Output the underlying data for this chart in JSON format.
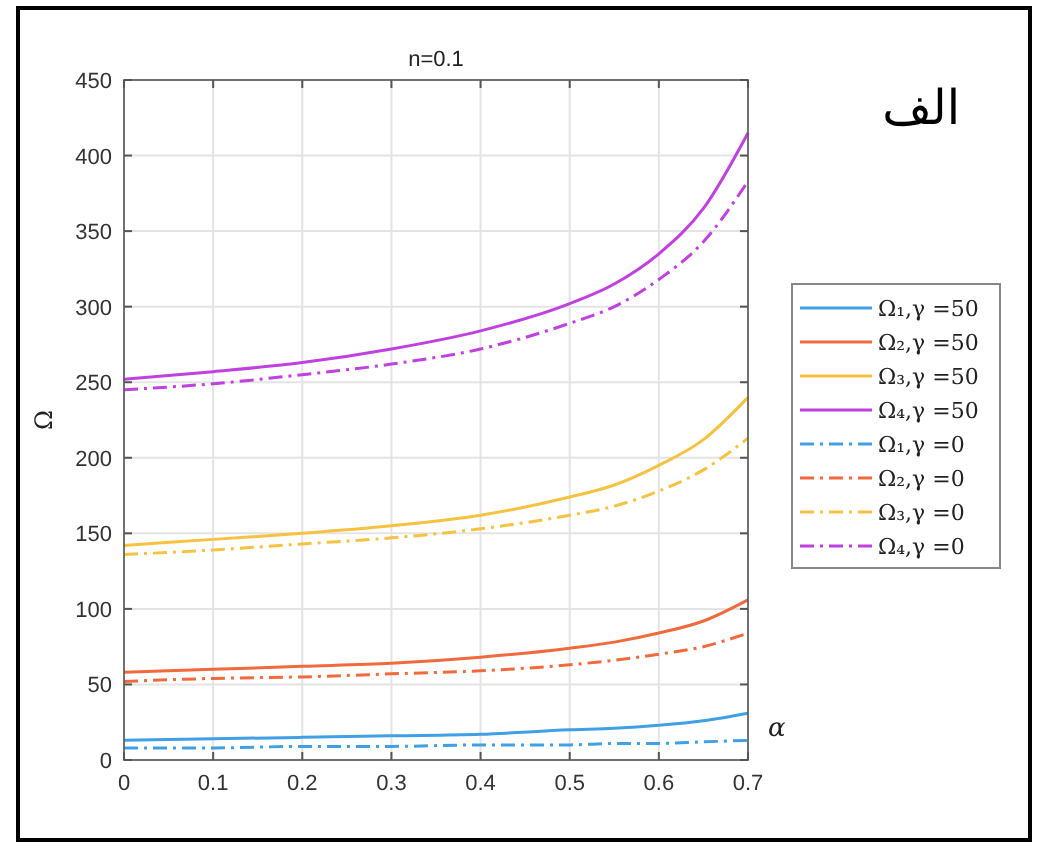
{
  "chart_data": {
    "type": "line",
    "title": "n=0.1",
    "xlabel": "α",
    "ylabel": "Ω",
    "annotations": [
      "الف"
    ],
    "x": [
      0,
      0.1,
      0.2,
      0.3,
      0.4,
      0.5,
      0.55,
      0.6,
      0.65,
      0.7
    ],
    "xlim": [
      0,
      0.7
    ],
    "xticks": [
      0,
      0.1,
      0.2,
      0.3,
      0.4,
      0.5,
      0.6,
      0.7
    ],
    "ylim": [
      0,
      450
    ],
    "yticks": [
      0,
      50,
      100,
      150,
      200,
      250,
      300,
      350,
      400,
      450
    ],
    "grid": true,
    "legend": "right",
    "series": [
      {
        "name": "Ω₁,γ =50",
        "color": "#3fa0e6",
        "line_style": "solid",
        "values": [
          13,
          14,
          15,
          16,
          17,
          20,
          21,
          23,
          26,
          31
        ]
      },
      {
        "name": "Ω₂,γ =50",
        "color": "#f06a3c",
        "line_style": "solid",
        "values": [
          58,
          60,
          62,
          64,
          68,
          74,
          78,
          84,
          92,
          106
        ]
      },
      {
        "name": "Ω₃,γ =50",
        "color": "#f5c242",
        "line_style": "solid",
        "values": [
          142,
          146,
          150,
          155,
          162,
          174,
          182,
          195,
          212,
          240
        ]
      },
      {
        "name": "Ω₄,γ =50",
        "color": "#c040e0",
        "line_style": "solid",
        "values": [
          252,
          257,
          263,
          272,
          284,
          302,
          315,
          335,
          365,
          415
        ]
      },
      {
        "name": "Ω₁,γ =0",
        "color": "#3fa0e6",
        "line_style": "dashdot",
        "values": [
          8,
          8,
          9,
          9,
          10,
          10,
          11,
          11,
          12,
          13
        ]
      },
      {
        "name": "Ω₂,γ =0",
        "color": "#f06a3c",
        "line_style": "dashdot",
        "values": [
          52,
          54,
          55,
          57,
          59,
          63,
          66,
          70,
          75,
          84
        ]
      },
      {
        "name": "Ω₃,γ =0",
        "color": "#f5c242",
        "line_style": "dashdot",
        "values": [
          136,
          139,
          143,
          147,
          153,
          162,
          168,
          178,
          192,
          213
        ]
      },
      {
        "name": "Ω₄,γ =0",
        "color": "#c040e0",
        "line_style": "dashdot",
        "values": [
          245,
          249,
          255,
          262,
          272,
          289,
          300,
          318,
          343,
          383
        ]
      }
    ]
  }
}
